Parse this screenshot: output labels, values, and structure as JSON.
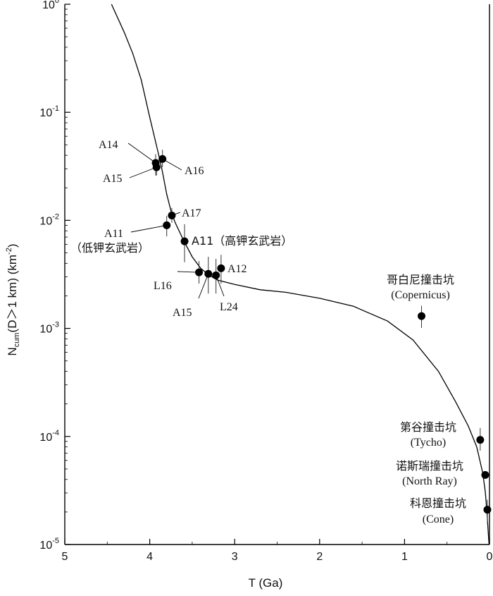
{
  "chart_data": {
    "type": "scatter",
    "xlabel": "T (Ga)",
    "ylabel_main": "N",
    "ylabel_sub": "cum",
    "ylabel_rest": "(D＞1 km) (km",
    "ylabel_sup": "-2",
    "ylabel_close": ")",
    "xlim": [
      5,
      0
    ],
    "ylim": [
      1e-05,
      1
    ],
    "y_scale": "log",
    "x_ticks": [
      {
        "value": 5,
        "label": "5"
      },
      {
        "value": 4,
        "label": "4"
      },
      {
        "value": 3,
        "label": "3"
      },
      {
        "value": 2,
        "label": "2"
      },
      {
        "value": 1,
        "label": "1"
      },
      {
        "value": 0,
        "label": "0"
      }
    ],
    "y_ticks": [
      {
        "value": 1,
        "base": "10",
        "exp": "0"
      },
      {
        "value": 0.1,
        "base": "10",
        "exp": "-1"
      },
      {
        "value": 0.01,
        "base": "10",
        "exp": "-2"
      },
      {
        "value": 0.001,
        "base": "10",
        "exp": "-3"
      },
      {
        "value": 0.0001,
        "base": "10",
        "exp": "-4"
      },
      {
        "value": 1e-05,
        "base": "10",
        "exp": "-5"
      }
    ],
    "curve": [
      [
        4.45,
        1.0
      ],
      [
        4.3,
        0.55
      ],
      [
        4.2,
        0.35
      ],
      [
        4.1,
        0.2
      ],
      [
        4.0,
        0.09
      ],
      [
        3.9,
        0.042
      ],
      [
        3.85,
        0.028
      ],
      [
        3.8,
        0.0175
      ],
      [
        3.75,
        0.0122
      ],
      [
        3.7,
        0.0095
      ],
      [
        3.6,
        0.0065
      ],
      [
        3.5,
        0.0046
      ],
      [
        3.4,
        0.0036
      ],
      [
        3.3,
        0.0031
      ],
      [
        3.2,
        0.0028
      ],
      [
        3.0,
        0.00255
      ],
      [
        2.7,
        0.00228
      ],
      [
        2.4,
        0.00216
      ],
      [
        2.0,
        0.0019
      ],
      [
        1.6,
        0.0016
      ],
      [
        1.2,
        0.00117
      ],
      [
        0.9,
        0.00078
      ],
      [
        0.6,
        0.0004
      ],
      [
        0.4,
        0.00021
      ],
      [
        0.25,
        0.000125
      ],
      [
        0.15,
        8e-05
      ],
      [
        0.08,
        4.6e-05
      ],
      [
        0.05,
        3.1e-05
      ],
      [
        0.03,
        2e-05
      ],
      [
        0.015,
        1.3e-05
      ],
      [
        0.005,
        1e-05
      ]
    ],
    "points": [
      {
        "name": "A14",
        "x": 3.93,
        "y": 0.034,
        "err": [
          0.026,
          0.041
        ]
      },
      {
        "name": "A15",
        "x": 3.92,
        "y": 0.031,
        "err": [
          0.026,
          0.036
        ]
      },
      {
        "name": "A16",
        "x": 3.85,
        "y": 0.037,
        "err": [
          0.031,
          0.045
        ]
      },
      {
        "name": "A17",
        "x": 3.74,
        "y": 0.0111,
        "err": [
          0.0095,
          0.013
        ]
      },
      {
        "name": "A11 low-K",
        "x": 3.8,
        "y": 0.009,
        "err": [
          0.0071,
          0.011
        ]
      },
      {
        "name": "A11 high-K",
        "x": 3.59,
        "y": 0.0064,
        "err": [
          0.0041,
          0.0092
        ]
      },
      {
        "name": "L16",
        "x": 3.42,
        "y": 0.0033,
        "err": [
          0.0026,
          0.0042
        ]
      },
      {
        "name": "A15 basalt",
        "x": 3.31,
        "y": 0.0032,
        "err": [
          0.0021,
          0.0046
        ]
      },
      {
        "name": "L24",
        "x": 3.22,
        "y": 0.0031,
        "err": [
          0.0021,
          0.0044
        ]
      },
      {
        "name": "A12",
        "x": 3.16,
        "y": 0.0036,
        "err": [
          0.0026,
          0.0048
        ]
      },
      {
        "name": "Copernicus",
        "x": 0.8,
        "y": 0.0013,
        "err": [
          0.00101,
          0.00162
        ]
      },
      {
        "name": "Tycho",
        "x": 0.109,
        "y": 9.3e-05,
        "err": [
          7.4e-05,
          0.00012
        ]
      },
      {
        "name": "North Ray",
        "x": 0.05,
        "y": 4.4e-05,
        "err": [
          4.4e-05,
          4.4e-05
        ]
      },
      {
        "name": "Cone",
        "x": 0.025,
        "y": 2.1e-05,
        "err": [
          1.6e-05,
          2.6e-05
        ]
      }
    ],
    "annotations": {
      "a14": "A14",
      "a15_top": "A15",
      "a16": "A16",
      "a17": "A17",
      "a11_low": "A11",
      "a11_low_cn": "（低钾玄武岩）",
      "a11_high": "A11（高钾玄武岩）",
      "l16": "L16",
      "a15_bottom": "A15",
      "l24": "L24",
      "a12": "A12",
      "copernicus_cn": "哥白尼撞击坑",
      "copernicus_en": "(Copernicus)",
      "tycho_cn": "第谷撞击坑",
      "tycho_en": "(Tycho)",
      "northray_cn": "诺斯瑞撞击坑",
      "northray_en": "(North Ray)",
      "cone_cn": "科恩撞击坑",
      "cone_en": "(Cone)"
    }
  }
}
